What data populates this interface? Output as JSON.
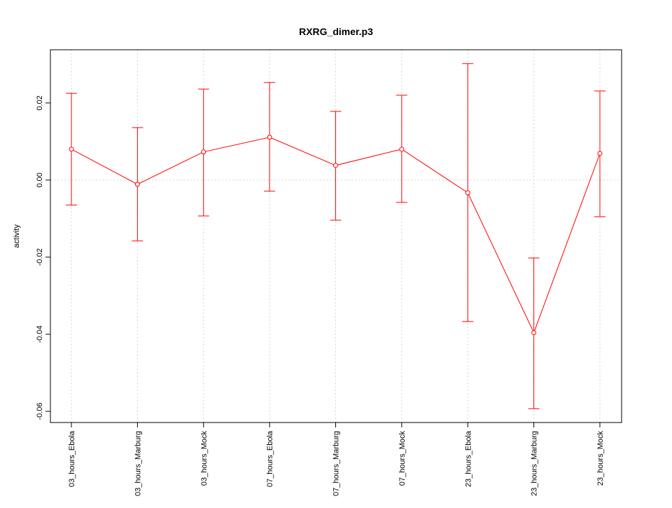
{
  "chart_data": {
    "type": "line",
    "title": "RXRG_dimer.p3",
    "xlabel": "",
    "ylabel": "activity",
    "categories": [
      "03_hours_Ebola",
      "03_hours_Marburg",
      "03_hours_Mock",
      "07_hours_Ebola",
      "07_hours_Marburg",
      "07_hours_Mock",
      "23_hours_Ebola",
      "23_hours_Marburg",
      "23_hours_Mock"
    ],
    "values": [
      0.008,
      -0.0011,
      0.0073,
      0.0111,
      0.0038,
      0.008,
      -0.0033,
      -0.0396,
      0.0069
    ],
    "error_upper": [
      0.0225,
      0.0136,
      0.0236,
      0.0253,
      0.0178,
      0.022,
      0.0302,
      -0.0202,
      0.0231
    ],
    "error_lower": [
      -0.0065,
      -0.0158,
      -0.0093,
      -0.0029,
      -0.0104,
      -0.0058,
      -0.0367,
      -0.0593,
      -0.0095
    ],
    "yticks": [
      0.02,
      0.0,
      -0.02,
      -0.04,
      -0.06
    ],
    "ytick_labels": [
      "0.02",
      "0.00",
      "-0.02",
      "-0.04",
      "-0.06"
    ],
    "ylim": [
      -0.0629,
      0.0338
    ],
    "grid": true,
    "colors": {
      "series": "#ff0000",
      "grid": "#d3d3d3",
      "axis": "#000000"
    }
  }
}
